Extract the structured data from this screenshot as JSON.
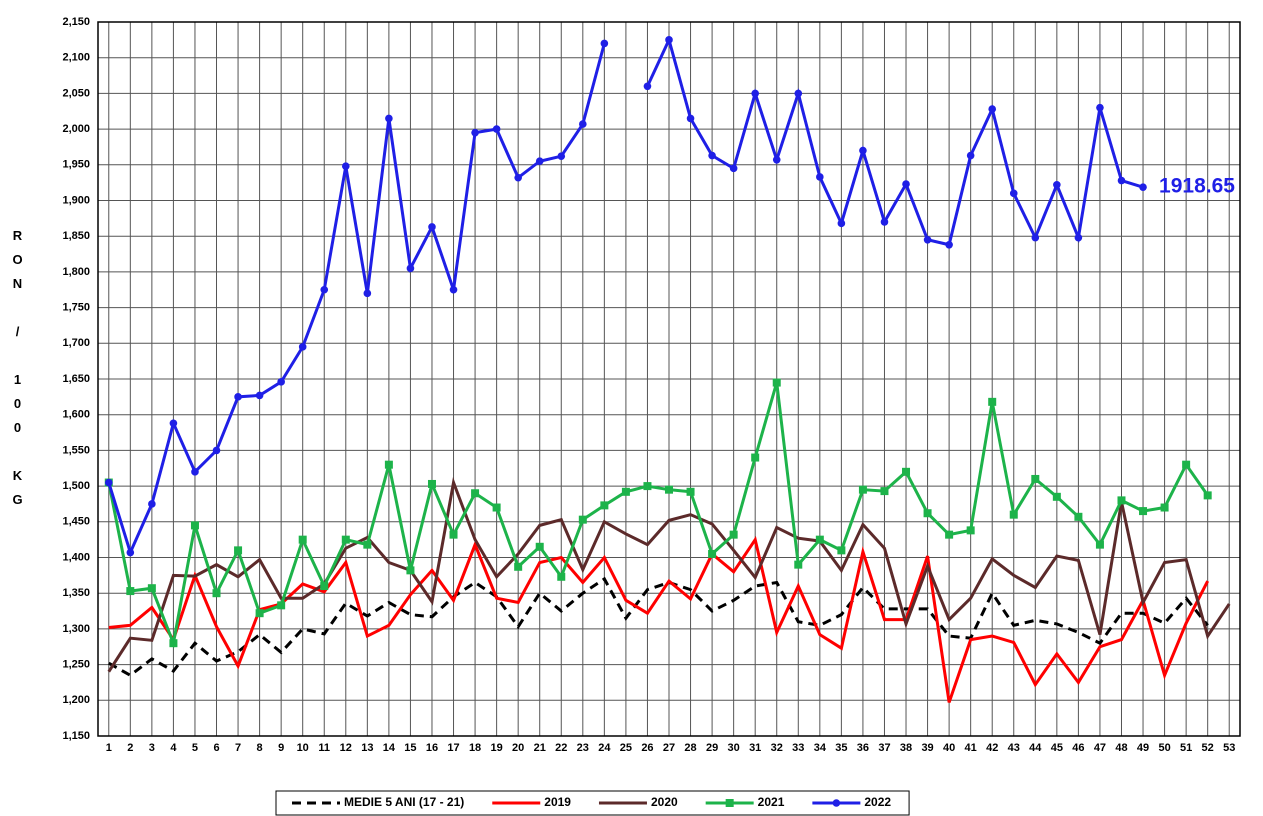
{
  "chart_data": {
    "type": "line",
    "y_label": "RON / 100 KG",
    "categories": [
      "1",
      "2",
      "3",
      "4",
      "5",
      "6",
      "7",
      "8",
      "9",
      "10",
      "11",
      "12",
      "13",
      "14",
      "15",
      "16",
      "17",
      "18",
      "19",
      "20",
      "21",
      "22",
      "23",
      "24",
      "25",
      "26",
      "27",
      "28",
      "29",
      "30",
      "31",
      "32",
      "33",
      "34",
      "35",
      "36",
      "37",
      "38",
      "39",
      "40",
      "41",
      "42",
      "43",
      "44",
      "45",
      "46",
      "47",
      "48",
      "49",
      "50",
      "51",
      "52",
      "53"
    ],
    "ylim": [
      1150,
      2150
    ],
    "yticks": [
      {
        "value": 1150,
        "label": "1,150"
      },
      {
        "value": 1200,
        "label": "1,200"
      },
      {
        "value": 1250,
        "label": "1,250"
      },
      {
        "value": 1300,
        "label": "1,300"
      },
      {
        "value": 1350,
        "label": "1,350"
      },
      {
        "value": 1400,
        "label": "1,400"
      },
      {
        "value": 1450,
        "label": "1,450"
      },
      {
        "value": 1500,
        "label": "1,500"
      },
      {
        "value": 1550,
        "label": "1,550"
      },
      {
        "value": 1600,
        "label": "1,600"
      },
      {
        "value": 1650,
        "label": "1,650"
      },
      {
        "value": 1700,
        "label": "1,700"
      },
      {
        "value": 1750,
        "label": "1,750"
      },
      {
        "value": 1800,
        "label": "1,800"
      },
      {
        "value": 1850,
        "label": "1,850"
      },
      {
        "value": 1900,
        "label": "1,900"
      },
      {
        "value": 1950,
        "label": "1,950"
      },
      {
        "value": 2000,
        "label": "2,000"
      },
      {
        "value": 2050,
        "label": "2,050"
      },
      {
        "value": 2100,
        "label": "2,100"
      },
      {
        "value": 2150,
        "label": "2,150"
      }
    ],
    "grid": true,
    "legend": "bottom",
    "series": [
      {
        "name": "MEDIE 5 ANI (17 - 21)",
        "color": "#000000",
        "dashed": true,
        "marker": null,
        "values": [
          1252,
          1235,
          1258,
          1241,
          1280,
          1255,
          1268,
          1292,
          1267,
          1300,
          1293,
          1336,
          1318,
          1337,
          1320,
          1317,
          1345,
          1365,
          1345,
          1303,
          1350,
          1325,
          1350,
          1370,
          1315,
          1355,
          1365,
          1355,
          1325,
          1340,
          1360,
          1365,
          1310,
          1305,
          1320,
          1358,
          1328,
          1328,
          1328,
          1290,
          1287,
          1350,
          1305,
          1312,
          1307,
          1295,
          1280,
          1322,
          1322,
          1308,
          1343,
          1305,
          null
        ]
      },
      {
        "name": "2019",
        "color": "#ff0000",
        "dashed": false,
        "marker": null,
        "values": [
          1302,
          1305,
          1330,
          1285,
          1375,
          1303,
          1248,
          1327,
          1335,
          1363,
          1352,
          1393,
          1290,
          1305,
          1348,
          1382,
          1340,
          1418,
          1343,
          1337,
          1393,
          1400,
          1365,
          1400,
          1340,
          1322,
          1367,
          1342,
          1405,
          1380,
          1425,
          1295,
          1360,
          1292,
          1273,
          1408,
          1313,
          1313,
          1402,
          1197,
          1285,
          1290,
          1281,
          1222,
          1265,
          1225,
          1275,
          1285,
          1340,
          1235,
          1308,
          1367,
          null
        ]
      },
      {
        "name": "2020",
        "color": "#5c2a2a",
        "dashed": false,
        "marker": null,
        "values": [
          1240,
          1287,
          1284,
          1375,
          1374,
          1390,
          1373,
          1397,
          1343,
          1343,
          1363,
          1413,
          1428,
          1393,
          1382,
          1338,
          1505,
          1425,
          1373,
          1405,
          1445,
          1453,
          1383,
          1450,
          1433,
          1418,
          1452,
          1460,
          1447,
          1410,
          1372,
          1442,
          1427,
          1423,
          1382,
          1446,
          1413,
          1307,
          1388,
          1313,
          1343,
          1398,
          1375,
          1358,
          1402,
          1396,
          1292,
          1478,
          1337,
          1393,
          1397,
          1290,
          1335
        ]
      },
      {
        "name": "2021",
        "color": "#1db34a",
        "dashed": false,
        "marker": "square",
        "values": [
          1505,
          1353,
          1357,
          1280,
          1445,
          1350,
          1410,
          1322,
          1333,
          1425,
          1360,
          1425,
          1418,
          1530,
          1382,
          1503,
          1432,
          1490,
          1470,
          1387,
          1415,
          1373,
          1453,
          1473,
          1492,
          1500,
          1495,
          1492,
          1405,
          1432,
          1540,
          1645,
          1390,
          1425,
          1410,
          1495,
          1493,
          1520,
          1462,
          1432,
          1438,
          1618,
          1460,
          1510,
          1485,
          1457,
          1418,
          1480,
          1465,
          1470,
          1530,
          1487,
          null
        ]
      },
      {
        "name": "2022",
        "color": "#1f1fe6",
        "dashed": false,
        "marker": "circle",
        "values": [
          1505,
          1407,
          1475,
          1588,
          1520,
          1550,
          1625,
          1627,
          1646,
          1695,
          1775,
          1948,
          1770,
          2015,
          1805,
          1863,
          1775,
          1995,
          2000,
          1932,
          1955,
          1962,
          2007,
          2120,
          null,
          2060,
          2125,
          2015,
          1963,
          1945,
          2050,
          1957,
          2050,
          1933,
          1868,
          1970,
          1870,
          1923,
          1845,
          1838,
          1963,
          2028,
          1910,
          1848,
          1922,
          1848,
          2030,
          1928,
          1918.65,
          null,
          null,
          null,
          null
        ],
        "value_labels": [
          null,
          null,
          null,
          null,
          null,
          null,
          null,
          null,
          null,
          null,
          null,
          null,
          null,
          null,
          null,
          null,
          null,
          null,
          null,
          null,
          null,
          null,
          null,
          null,
          null,
          null,
          null,
          null,
          null,
          null,
          null,
          null,
          null,
          null,
          null,
          null,
          null,
          null,
          null,
          null,
          null,
          null,
          null,
          null,
          null,
          null,
          null,
          null,
          "1918.65",
          null,
          null,
          null,
          null
        ]
      }
    ]
  }
}
